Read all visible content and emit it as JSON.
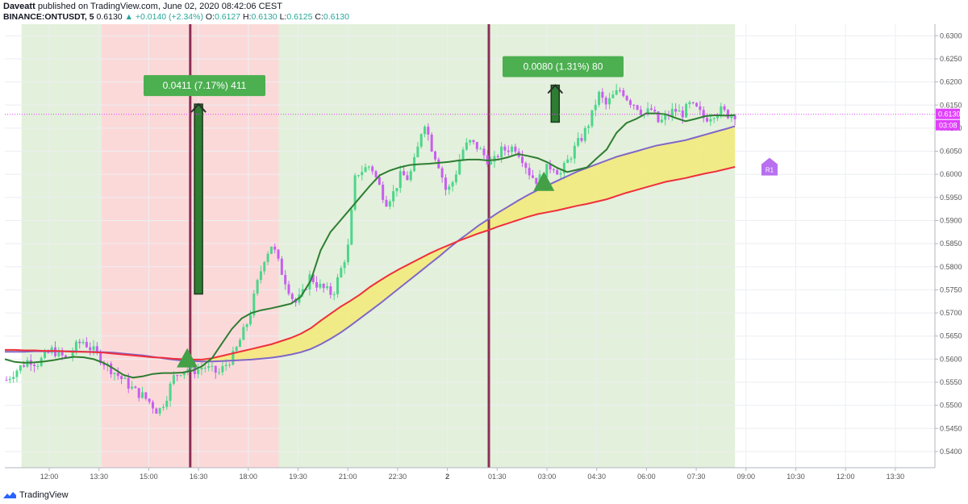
{
  "header": {
    "author": "Daveatt",
    "published": "published on TradingView.com, June 02, 2020 08:42:06 CEST",
    "symbol": "BINANCE:ONTUSDT, 5",
    "last": "0.6130",
    "change": "+0.0140 (+2.34%)",
    "open_label": "O:",
    "open": "0.6127",
    "high_label": "H:",
    "high": "0.6130",
    "low_label": "L:",
    "low": "0.6125",
    "close_label": "C:",
    "close": "0.6130"
  },
  "footer": {
    "brand": "TradingView"
  },
  "colors": {
    "up_candle": "#4cd68a",
    "down_candle": "#c85ef0",
    "fast_ma": "#2e7d32",
    "slow_ma_red": "#ef2f3c",
    "slow_ma_purple": "#8066c8",
    "cloud_fill": "#f4ea6a",
    "bg_green": "#e3f0db",
    "bg_red": "#fcd9d9",
    "signal_line": "#8b2f57",
    "label_green": "#4caf50",
    "r1_badge": "#b86ff0",
    "price_line": "#e040fb",
    "last_price_tag": "#e040fb"
  },
  "chart_data": {
    "type": "candlestick",
    "title": "",
    "xlabel": "",
    "ylabel": "",
    "ylim": [
      0.5365,
      0.6325
    ],
    "x_ticks": [
      "12:00",
      "13:30",
      "15:00",
      "16:30",
      "18:00",
      "19:30",
      "21:00",
      "22:30",
      "2",
      "01:30",
      "03:00",
      "04:30",
      "06:00",
      "07:30",
      "09:00",
      "10:30",
      "12:00",
      "13:30"
    ],
    "y_ticks": [
      "0.6300",
      "0.6250",
      "0.6200",
      "0.6150",
      "0.6100",
      "0.6050",
      "0.6000",
      "0.5950",
      "0.5900",
      "0.5850",
      "0.5800",
      "0.5750",
      "0.5700",
      "0.5650",
      "0.5600",
      "0.5550",
      "0.5500",
      "0.5450",
      "0.5400"
    ],
    "grid": true,
    "last_price": "0.6130",
    "last_time_tag": "03:08",
    "background_zones": [
      {
        "from": "11:10",
        "to": "13:35",
        "state": "bullish"
      },
      {
        "from": "13:35",
        "to": "18:55",
        "state": "bearish"
      },
      {
        "from": "18:55",
        "to": "08:40",
        "state": "bullish"
      }
    ],
    "vertical_signal_lines": [
      "16:15",
      "01:15"
    ],
    "trades": [
      {
        "label": "0.0411 (7.17%) 411",
        "entry": 0.5741,
        "exit": 0.6152
      },
      {
        "label": "0.0080 (1.31%) 80",
        "entry": 0.6113,
        "exit": 0.6193
      }
    ],
    "buy_markers": [
      {
        "time": "16:30",
        "price": 0.5603
      },
      {
        "time": "03:15",
        "price": 0.5985
      }
    ],
    "r1_marker": {
      "label": "R1",
      "time": "10:00",
      "price": 0.6015
    },
    "series": [
      {
        "name": "",
        "role": "fast_ma",
        "values": [
          0.56,
          0.5594,
          0.5592,
          0.5593,
          0.5595,
          0.5598,
          0.5602,
          0.5605,
          0.5604,
          0.56,
          0.5592,
          0.558,
          0.5566,
          0.556,
          0.5563,
          0.5568,
          0.557,
          0.557,
          0.5571,
          0.5575,
          0.5585,
          0.5602,
          0.5634,
          0.5665,
          0.5688,
          0.57,
          0.5706,
          0.571,
          0.5715,
          0.572,
          0.5735,
          0.577,
          0.5835,
          0.5875,
          0.59,
          0.5925,
          0.595,
          0.5975,
          0.5998,
          0.6008,
          0.6015,
          0.602,
          0.6022,
          0.6023,
          0.6025,
          0.6027,
          0.603,
          0.6032,
          0.6032,
          0.603,
          0.6032,
          0.6037,
          0.6044,
          0.604,
          0.6035,
          0.6026,
          0.6014,
          0.6005,
          0.601,
          0.6015,
          0.6035,
          0.6054,
          0.609,
          0.6111,
          0.612,
          0.6132,
          0.6132,
          0.613,
          0.6122,
          0.6115,
          0.612,
          0.6126,
          0.6128,
          0.6127,
          0.6128
        ]
      },
      {
        "name": "",
        "role": "slow_ma_red",
        "values": [
          0.562,
          0.562,
          0.5619,
          0.5619,
          0.5618,
          0.5618,
          0.5617,
          0.5616,
          0.5616,
          0.5615,
          0.5614,
          0.5612,
          0.561,
          0.5608,
          0.5606,
          0.5604,
          0.5603,
          0.5601,
          0.56,
          0.5599,
          0.5599,
          0.5602,
          0.5607,
          0.5612,
          0.5617,
          0.5622,
          0.5627,
          0.5632,
          0.5639,
          0.5646,
          0.5655,
          0.5667,
          0.5683,
          0.5698,
          0.5713,
          0.5726,
          0.574,
          0.5756,
          0.577,
          0.5783,
          0.5795,
          0.5806,
          0.5817,
          0.5828,
          0.5838,
          0.5847,
          0.5856,
          0.5864,
          0.5872,
          0.5879,
          0.5887,
          0.5894,
          0.5901,
          0.5908,
          0.5914,
          0.5918,
          0.5922,
          0.5927,
          0.5932,
          0.5936,
          0.5941,
          0.5946,
          0.5953,
          0.596,
          0.5966,
          0.5972,
          0.5978,
          0.5984,
          0.5988,
          0.5992,
          0.5997,
          0.6002,
          0.6006,
          0.6011,
          0.6016
        ]
      },
      {
        "name": "",
        "role": "slow_ma_purple",
        "values": [
          0.5616,
          0.5616,
          0.5616,
          0.5617,
          0.5617,
          0.5617,
          0.5617,
          0.5617,
          0.5616,
          0.5616,
          0.5615,
          0.5614,
          0.5612,
          0.561,
          0.5608,
          0.5605,
          0.5602,
          0.5599,
          0.5597,
          0.5596,
          0.5595,
          0.5595,
          0.5596,
          0.5597,
          0.5598,
          0.5599,
          0.5601,
          0.5603,
          0.5606,
          0.561,
          0.5615,
          0.5622,
          0.5632,
          0.5644,
          0.5657,
          0.5672,
          0.5688,
          0.5704,
          0.572,
          0.5737,
          0.5754,
          0.5771,
          0.5788,
          0.5805,
          0.5822,
          0.584,
          0.5857,
          0.5873,
          0.5889,
          0.5903,
          0.5917,
          0.593,
          0.5943,
          0.5955,
          0.5966,
          0.5976,
          0.5986,
          0.5996,
          0.6006,
          0.6014,
          0.6022,
          0.603,
          0.6038,
          0.6044,
          0.605,
          0.6056,
          0.6062,
          0.6066,
          0.607,
          0.6074,
          0.608,
          0.6086,
          0.6092,
          0.6098,
          0.6104
        ]
      },
      {
        "name": "",
        "role": "close_path",
        "values": [
          0.5555,
          0.5572,
          0.5585,
          0.56,
          0.559,
          0.5605,
          0.562,
          0.561,
          0.5598,
          0.5625,
          0.564,
          0.5625,
          0.561,
          0.559,
          0.5575,
          0.556,
          0.5545,
          0.553,
          0.552,
          0.5505,
          0.5485,
          0.5515,
          0.556,
          0.5575,
          0.558,
          0.5575,
          0.5585,
          0.5575,
          0.557,
          0.559,
          0.561,
          0.565,
          0.569,
          0.576,
          0.582,
          0.585,
          0.58,
          0.576,
          0.572,
          0.574,
          0.578,
          0.576,
          0.575,
          0.574,
          0.579,
          0.584,
          0.6,
          0.601,
          0.602,
          0.598,
          0.594,
          0.596,
          0.6,
          0.599,
          0.604,
          0.612,
          0.606,
          0.602,
          0.596,
          0.599,
          0.605,
          0.607,
          0.606,
          0.604,
          0.602,
          0.605,
          0.6055,
          0.606,
          0.6035,
          0.6,
          0.5985,
          0.601,
          0.602,
          0.6,
          0.603,
          0.606,
          0.6085,
          0.612,
          0.6175,
          0.615,
          0.617,
          0.6185,
          0.616,
          0.615,
          0.613,
          0.614,
          0.611,
          0.6125,
          0.614,
          0.613,
          0.615,
          0.614,
          0.612,
          0.613,
          0.614,
          0.613,
          0.613
        ]
      }
    ]
  }
}
